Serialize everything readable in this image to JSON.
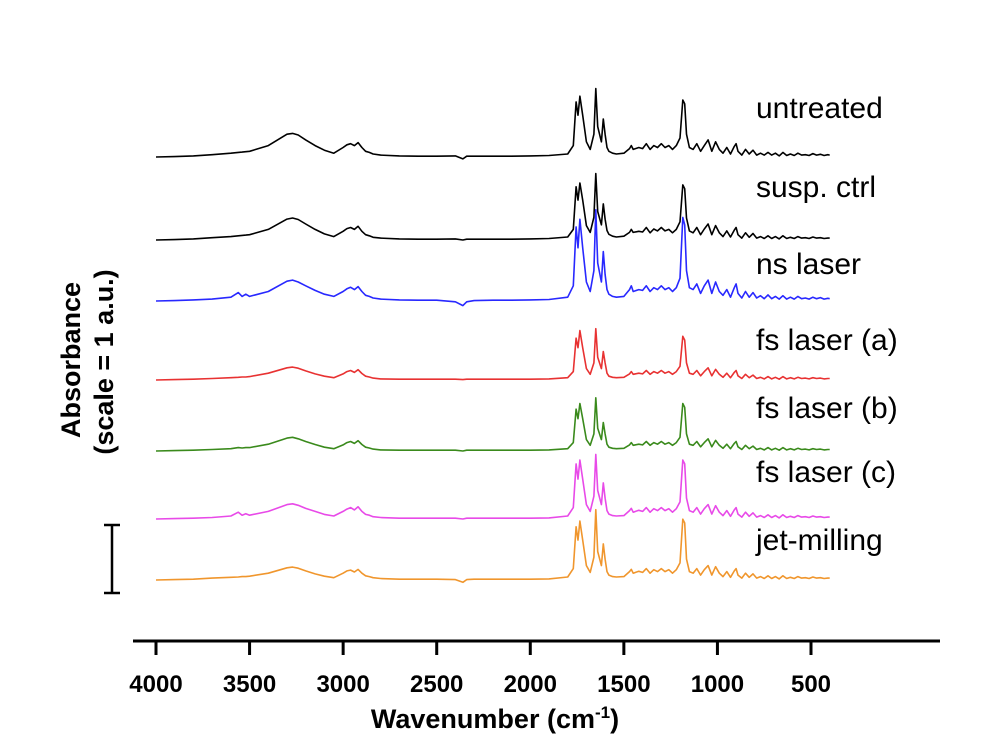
{
  "chart_data": {
    "type": "line",
    "title": "",
    "xlabel": "Wavenumber (cm",
    "xlabel_sup": "-1",
    "xlabel_close": ")",
    "ylabel": "Absorbance",
    "ylabel_sub": "(scale = 1 a.u.)",
    "x_reversed": true,
    "xlim": [
      4100,
      400
    ],
    "xticks": [
      4000,
      3500,
      3000,
      2500,
      2000,
      1500,
      1000,
      500
    ],
    "grid": false,
    "legend": "inline-right",
    "scale_bar_au": 1,
    "x": [
      4000,
      3900,
      3800,
      3700,
      3600,
      3560,
      3540,
      3520,
      3500,
      3400,
      3300,
      3270,
      3240,
      3200,
      3150,
      3100,
      3050,
      3000,
      2980,
      2960,
      2940,
      2920,
      2900,
      2880,
      2860,
      2840,
      2800,
      2700,
      2600,
      2500,
      2400,
      2360,
      2340,
      2300,
      2200,
      2100,
      2000,
      1900,
      1800,
      1770,
      1755,
      1745,
      1735,
      1720,
      1700,
      1680,
      1660,
      1650,
      1640,
      1620,
      1610,
      1600,
      1590,
      1580,
      1560,
      1540,
      1500,
      1470,
      1460,
      1450,
      1420,
      1400,
      1380,
      1360,
      1340,
      1320,
      1300,
      1280,
      1260,
      1240,
      1220,
      1200,
      1185,
      1175,
      1165,
      1150,
      1130,
      1110,
      1090,
      1070,
      1050,
      1030,
      1010,
      990,
      970,
      950,
      930,
      910,
      900,
      890,
      870,
      850,
      830,
      810,
      790,
      770,
      750,
      730,
      710,
      690,
      670,
      650,
      630,
      610,
      590,
      570,
      550,
      530,
      510,
      490,
      470,
      450,
      430,
      410,
      400
    ],
    "series": [
      {
        "name": "untreated",
        "color": "#000000",
        "values": [
          0.0,
          0.01,
          0.03,
          0.06,
          0.1,
          0.12,
          0.13,
          0.14,
          0.15,
          0.3,
          0.6,
          0.62,
          0.58,
          0.45,
          0.3,
          0.18,
          0.1,
          0.25,
          0.32,
          0.35,
          0.3,
          0.38,
          0.25,
          0.15,
          0.12,
          0.08,
          0.05,
          0.03,
          0.02,
          0.02,
          0.03,
          -0.05,
          0.02,
          0.02,
          0.02,
          0.02,
          0.03,
          0.04,
          0.08,
          0.3,
          1.45,
          1.1,
          1.6,
          1.1,
          0.4,
          0.2,
          0.6,
          1.8,
          0.8,
          0.4,
          1.0,
          0.6,
          0.25,
          0.15,
          0.1,
          0.08,
          0.1,
          0.22,
          0.3,
          0.2,
          0.25,
          0.22,
          0.35,
          0.2,
          0.3,
          0.25,
          0.35,
          0.25,
          0.3,
          0.2,
          0.3,
          0.5,
          1.5,
          1.4,
          0.6,
          0.25,
          0.2,
          0.35,
          0.15,
          0.3,
          0.45,
          0.15,
          0.4,
          0.2,
          0.1,
          0.25,
          0.08,
          0.28,
          0.35,
          0.15,
          0.05,
          0.2,
          0.08,
          0.18,
          0.05,
          0.1,
          0.05,
          0.12,
          0.05,
          0.1,
          0.03,
          0.12,
          0.04,
          0.08,
          0.04,
          0.1,
          0.05,
          0.06,
          0.04,
          0.09,
          0.05,
          0.07,
          0.04,
          0.06,
          0.05
        ]
      },
      {
        "name": "susp. ctrl",
        "color": "#000000",
        "values": [
          0.0,
          0.01,
          0.03,
          0.06,
          0.09,
          0.11,
          0.12,
          0.13,
          0.14,
          0.28,
          0.55,
          0.58,
          0.54,
          0.42,
          0.28,
          0.16,
          0.09,
          0.23,
          0.3,
          0.33,
          0.28,
          0.36,
          0.23,
          0.14,
          0.11,
          0.07,
          0.05,
          0.03,
          0.02,
          0.02,
          0.03,
          0.0,
          0.02,
          0.02,
          0.02,
          0.02,
          0.03,
          0.04,
          0.08,
          0.28,
          1.4,
          1.05,
          1.5,
          1.05,
          0.38,
          0.2,
          0.6,
          1.75,
          0.75,
          0.4,
          0.95,
          0.55,
          0.25,
          0.15,
          0.1,
          0.08,
          0.1,
          0.2,
          0.28,
          0.2,
          0.23,
          0.21,
          0.33,
          0.19,
          0.29,
          0.24,
          0.33,
          0.24,
          0.28,
          0.19,
          0.28,
          0.48,
          1.45,
          1.35,
          0.58,
          0.24,
          0.19,
          0.33,
          0.14,
          0.29,
          0.42,
          0.14,
          0.38,
          0.19,
          0.09,
          0.24,
          0.08,
          0.26,
          0.33,
          0.14,
          0.05,
          0.19,
          0.07,
          0.17,
          0.05,
          0.09,
          0.04,
          0.11,
          0.04,
          0.09,
          0.03,
          0.11,
          0.04,
          0.07,
          0.04,
          0.09,
          0.05,
          0.06,
          0.04,
          0.08,
          0.05,
          0.06,
          0.04,
          0.05,
          0.05
        ]
      },
      {
        "name": "ns laser",
        "color": "#2828ff",
        "values": [
          0.0,
          0.01,
          0.03,
          0.05,
          0.1,
          0.22,
          0.12,
          0.18,
          0.12,
          0.25,
          0.52,
          0.55,
          0.5,
          0.4,
          0.28,
          0.18,
          0.12,
          0.25,
          0.32,
          0.36,
          0.3,
          0.38,
          0.25,
          0.15,
          0.12,
          0.08,
          0.05,
          0.03,
          0.02,
          0.02,
          -0.02,
          -0.12,
          -0.02,
          0.01,
          0.02,
          0.02,
          0.03,
          0.04,
          0.1,
          0.4,
          1.95,
          1.4,
          2.15,
          1.4,
          0.5,
          0.25,
          0.8,
          2.4,
          1.0,
          0.5,
          1.3,
          0.7,
          0.3,
          0.18,
          0.12,
          0.1,
          0.12,
          0.3,
          0.4,
          0.25,
          0.3,
          0.28,
          0.4,
          0.25,
          0.35,
          0.3,
          0.4,
          0.3,
          0.35,
          0.25,
          0.35,
          0.6,
          2.2,
          2.0,
          0.8,
          0.35,
          0.3,
          0.45,
          0.2,
          0.4,
          0.55,
          0.2,
          0.5,
          0.25,
          0.15,
          0.3,
          0.1,
          0.35,
          0.45,
          0.2,
          0.08,
          0.25,
          0.1,
          0.22,
          0.08,
          0.14,
          0.06,
          0.16,
          0.06,
          0.12,
          0.05,
          0.14,
          0.05,
          0.1,
          0.05,
          0.12,
          0.06,
          0.08,
          0.05,
          0.1,
          0.06,
          0.09,
          0.05,
          0.07,
          0.06
        ]
      },
      {
        "name": "fs laser (a)",
        "color": "#e83232",
        "values": [
          0.0,
          0.01,
          0.02,
          0.04,
          0.06,
          0.07,
          0.08,
          0.08,
          0.09,
          0.18,
          0.32,
          0.34,
          0.31,
          0.24,
          0.16,
          0.1,
          0.06,
          0.16,
          0.22,
          0.25,
          0.2,
          0.27,
          0.17,
          0.1,
          0.08,
          0.05,
          0.03,
          0.02,
          0.02,
          0.02,
          0.02,
          0.01,
          0.02,
          0.02,
          0.02,
          0.02,
          0.02,
          0.03,
          0.06,
          0.22,
          1.1,
          0.85,
          1.3,
          0.85,
          0.3,
          0.15,
          0.45,
          1.35,
          0.6,
          0.3,
          0.75,
          0.45,
          0.18,
          0.1,
          0.07,
          0.06,
          0.07,
          0.16,
          0.22,
          0.15,
          0.18,
          0.16,
          0.25,
          0.15,
          0.22,
          0.18,
          0.25,
          0.18,
          0.22,
          0.15,
          0.22,
          0.36,
          1.15,
          1.05,
          0.45,
          0.18,
          0.15,
          0.25,
          0.11,
          0.22,
          0.32,
          0.11,
          0.28,
          0.15,
          0.07,
          0.18,
          0.06,
          0.2,
          0.25,
          0.11,
          0.04,
          0.15,
          0.06,
          0.13,
          0.04,
          0.07,
          0.03,
          0.09,
          0.03,
          0.07,
          0.02,
          0.09,
          0.03,
          0.06,
          0.03,
          0.07,
          0.04,
          0.05,
          0.03,
          0.06,
          0.04,
          0.05,
          0.03,
          0.04,
          0.04
        ]
      },
      {
        "name": "fs laser (b)",
        "color": "#3a8a1c",
        "values": [
          0.0,
          0.01,
          0.02,
          0.04,
          0.06,
          0.09,
          0.08,
          0.09,
          0.09,
          0.18,
          0.34,
          0.36,
          0.32,
          0.25,
          0.17,
          0.1,
          0.06,
          0.16,
          0.22,
          0.25,
          0.2,
          0.27,
          0.17,
          0.1,
          0.08,
          0.05,
          0.03,
          0.02,
          0.02,
          0.02,
          0.02,
          0.0,
          0.02,
          0.02,
          0.02,
          0.02,
          0.02,
          0.03,
          0.06,
          0.22,
          1.1,
          0.85,
          1.25,
          0.85,
          0.3,
          0.15,
          0.45,
          1.4,
          0.6,
          0.3,
          0.75,
          0.45,
          0.18,
          0.1,
          0.07,
          0.06,
          0.07,
          0.16,
          0.22,
          0.15,
          0.18,
          0.16,
          0.25,
          0.15,
          0.22,
          0.18,
          0.25,
          0.18,
          0.22,
          0.15,
          0.22,
          0.36,
          1.25,
          1.15,
          0.45,
          0.18,
          0.15,
          0.25,
          0.11,
          0.22,
          0.32,
          0.11,
          0.28,
          0.15,
          0.07,
          0.18,
          0.06,
          0.2,
          0.25,
          0.11,
          0.04,
          0.15,
          0.06,
          0.13,
          0.04,
          0.07,
          0.03,
          0.09,
          0.03,
          0.07,
          0.02,
          0.09,
          0.03,
          0.06,
          0.03,
          0.07,
          0.04,
          0.05,
          0.03,
          0.06,
          0.04,
          0.05,
          0.03,
          0.04,
          0.04
        ]
      },
      {
        "name": "fs laser (c)",
        "color": "#e84ae8",
        "values": [
          0.0,
          0.01,
          0.02,
          0.04,
          0.08,
          0.18,
          0.1,
          0.14,
          0.1,
          0.2,
          0.38,
          0.4,
          0.36,
          0.28,
          0.2,
          0.12,
          0.08,
          0.2,
          0.26,
          0.3,
          0.24,
          0.32,
          0.2,
          0.12,
          0.1,
          0.06,
          0.04,
          0.02,
          0.02,
          0.02,
          0.02,
          0.0,
          0.02,
          0.02,
          0.02,
          0.02,
          0.02,
          0.03,
          0.08,
          0.3,
          1.45,
          1.05,
          1.55,
          1.05,
          0.38,
          0.2,
          0.6,
          1.7,
          0.75,
          0.38,
          0.95,
          0.55,
          0.22,
          0.13,
          0.09,
          0.08,
          0.09,
          0.22,
          0.28,
          0.18,
          0.23,
          0.2,
          0.3,
          0.18,
          0.27,
          0.22,
          0.3,
          0.22,
          0.27,
          0.18,
          0.27,
          0.45,
          1.55,
          1.45,
          0.55,
          0.22,
          0.18,
          0.3,
          0.13,
          0.27,
          0.38,
          0.13,
          0.35,
          0.18,
          0.09,
          0.22,
          0.07,
          0.24,
          0.3,
          0.13,
          0.05,
          0.18,
          0.07,
          0.16,
          0.05,
          0.09,
          0.04,
          0.11,
          0.04,
          0.09,
          0.03,
          0.11,
          0.04,
          0.07,
          0.04,
          0.09,
          0.05,
          0.06,
          0.04,
          0.08,
          0.05,
          0.06,
          0.04,
          0.05,
          0.05
        ]
      },
      {
        "name": "jet-milling",
        "color": "#f0962d",
        "values": [
          0.0,
          0.01,
          0.02,
          0.05,
          0.07,
          0.08,
          0.09,
          0.09,
          0.1,
          0.18,
          0.32,
          0.34,
          0.31,
          0.24,
          0.16,
          0.1,
          0.06,
          0.18,
          0.24,
          0.26,
          0.21,
          0.28,
          0.18,
          0.11,
          0.09,
          0.06,
          0.04,
          0.02,
          0.02,
          0.02,
          0.01,
          -0.06,
          0.01,
          0.02,
          0.02,
          0.02,
          0.02,
          0.03,
          0.08,
          0.3,
          1.4,
          1.05,
          1.55,
          1.05,
          0.38,
          0.2,
          0.6,
          1.85,
          0.75,
          0.38,
          0.95,
          0.55,
          0.22,
          0.13,
          0.09,
          0.08,
          0.09,
          0.22,
          0.28,
          0.18,
          0.23,
          0.2,
          0.3,
          0.18,
          0.27,
          0.22,
          0.3,
          0.22,
          0.27,
          0.18,
          0.27,
          0.45,
          1.6,
          1.5,
          0.55,
          0.22,
          0.18,
          0.3,
          0.13,
          0.27,
          0.38,
          0.13,
          0.35,
          0.18,
          0.09,
          0.22,
          0.07,
          0.24,
          0.3,
          0.13,
          0.05,
          0.18,
          0.07,
          0.16,
          0.05,
          0.09,
          0.04,
          0.11,
          0.04,
          0.09,
          0.03,
          0.11,
          0.04,
          0.07,
          0.04,
          0.09,
          0.05,
          0.06,
          0.04,
          0.08,
          0.05,
          0.06,
          0.04,
          0.05,
          0.05
        ]
      }
    ]
  }
}
